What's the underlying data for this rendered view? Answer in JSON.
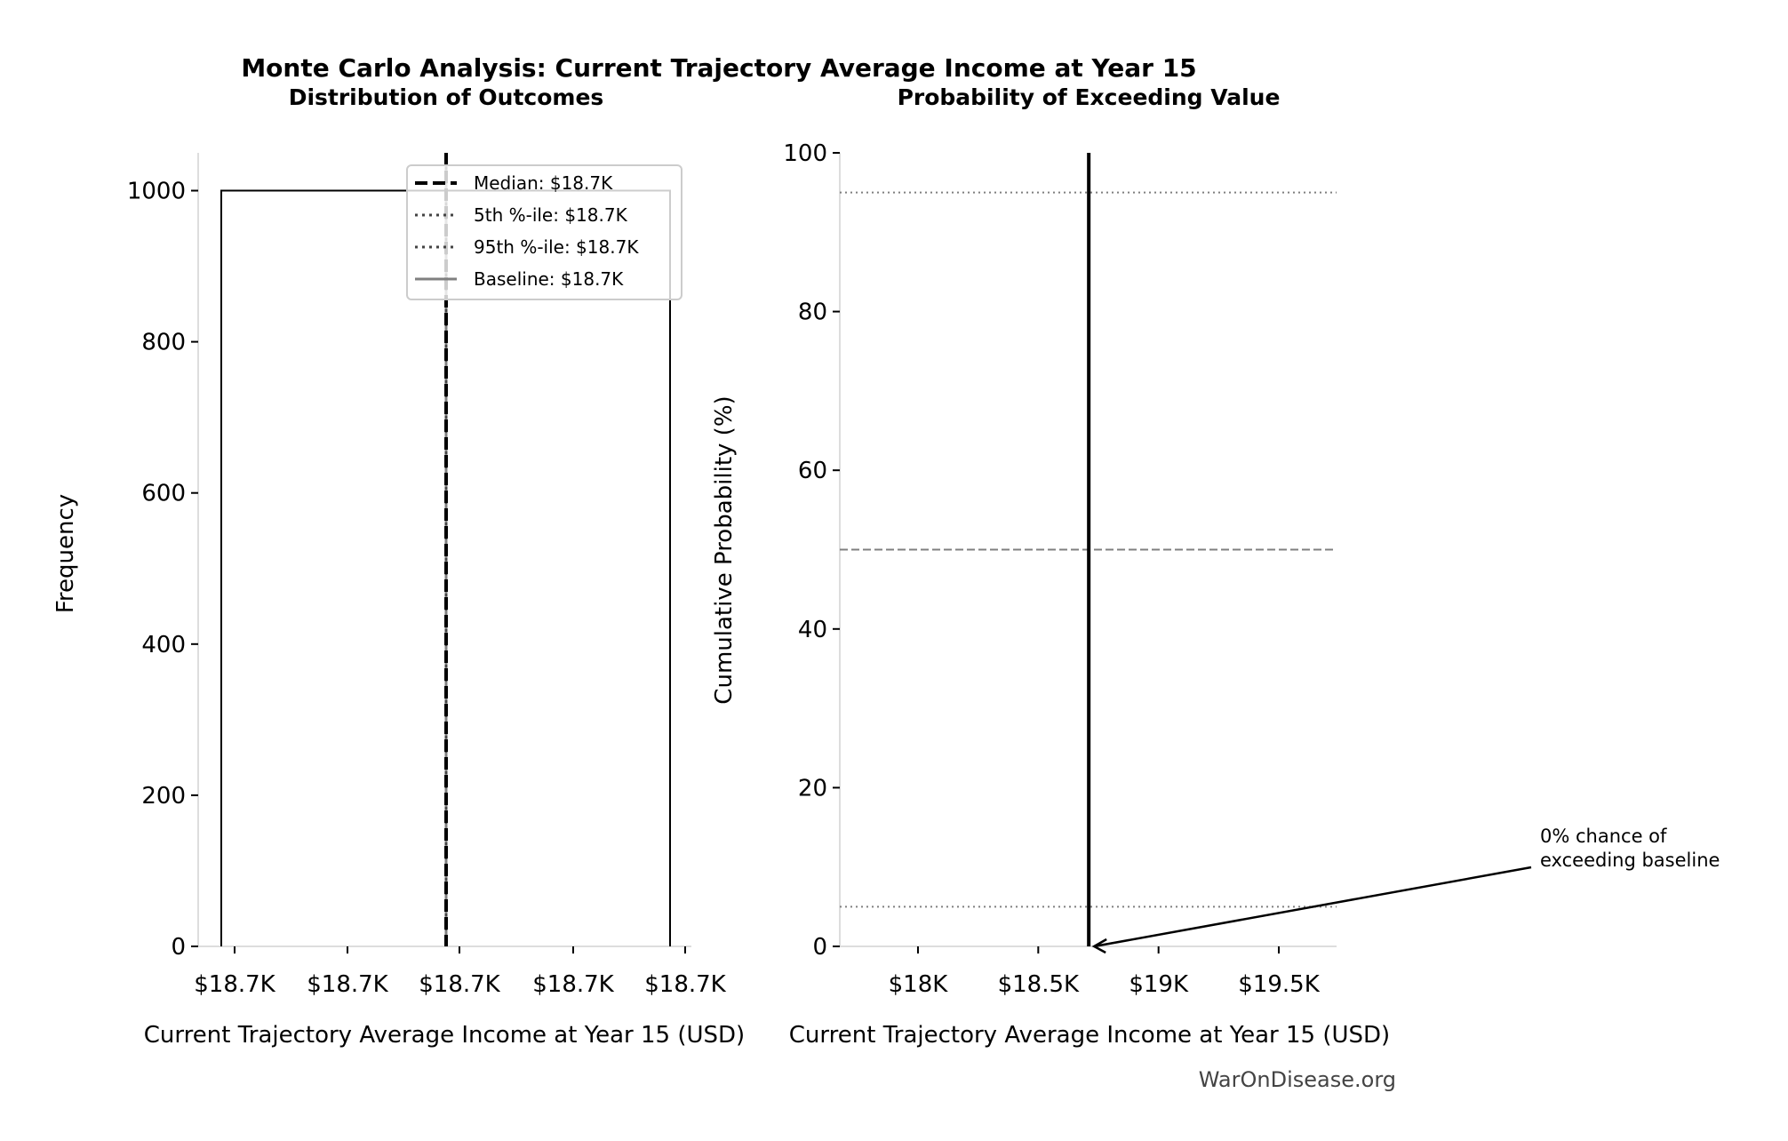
{
  "title": "Monte Carlo Analysis: Current Trajectory Average Income at Year 15",
  "watermark": "WarOnDisease.org",
  "colors": {
    "bar_edge": "#000000",
    "median": "#000000",
    "percentile": "#444444",
    "baseline": "#808080",
    "reference_lines": "#808080"
  },
  "chart_data": [
    {
      "type": "bar",
      "subtitle": "Distribution of Outcomes",
      "xlabel": "Current Trajectory Average Income at Year 15 (USD)",
      "ylabel": "Frequency",
      "ylim": [
        0,
        1050
      ],
      "yticks": [
        "0",
        "200",
        "400",
        "600",
        "800",
        "1000"
      ],
      "xtick_labels": [
        "$18.7K",
        "$18.7K",
        "$18.7K",
        "$18.7K",
        "$18.7K"
      ],
      "bins": [
        {
          "label": "$18.7K",
          "count": 1000
        }
      ],
      "legend": {
        "position": "upper-right",
        "entries": [
          {
            "label": "Median: $18.7K",
            "style": "dashed"
          },
          {
            "label": "5th %-ile: $18.7K",
            "style": "dotted"
          },
          {
            "label": "95th %-ile: $18.7K",
            "style": "dotted"
          },
          {
            "label": "Baseline: $18.7K",
            "style": "solid"
          }
        ]
      }
    },
    {
      "type": "line",
      "subtitle": "Probability of Exceeding Value",
      "xlabel": "Current Trajectory Average Income at Year 15 (USD)",
      "ylabel": "Cumulative Probability (%)",
      "xlim": [
        17675,
        19740
      ],
      "ylim": [
        0,
        100
      ],
      "xticks": [
        {
          "value": 18000,
          "label": "$18K"
        },
        {
          "value": 18500,
          "label": "$18.5K"
        },
        {
          "value": 19000,
          "label": "$19K"
        },
        {
          "value": 19500,
          "label": "$19.5K"
        }
      ],
      "yticks": [
        "0",
        "20",
        "40",
        "60",
        "80",
        "100"
      ],
      "curve": {
        "x": [
          18710,
          18710
        ],
        "y": [
          0,
          100
        ]
      },
      "hlines": [
        {
          "y": 95,
          "style": "dotted"
        },
        {
          "y": 50,
          "style": "dashed"
        },
        {
          "y": 5,
          "style": "dotted"
        }
      ],
      "annotation": {
        "lines": [
          "0% chance of",
          "exceeding baseline"
        ],
        "points_to": {
          "x": 18710,
          "y": 0
        }
      }
    }
  ]
}
